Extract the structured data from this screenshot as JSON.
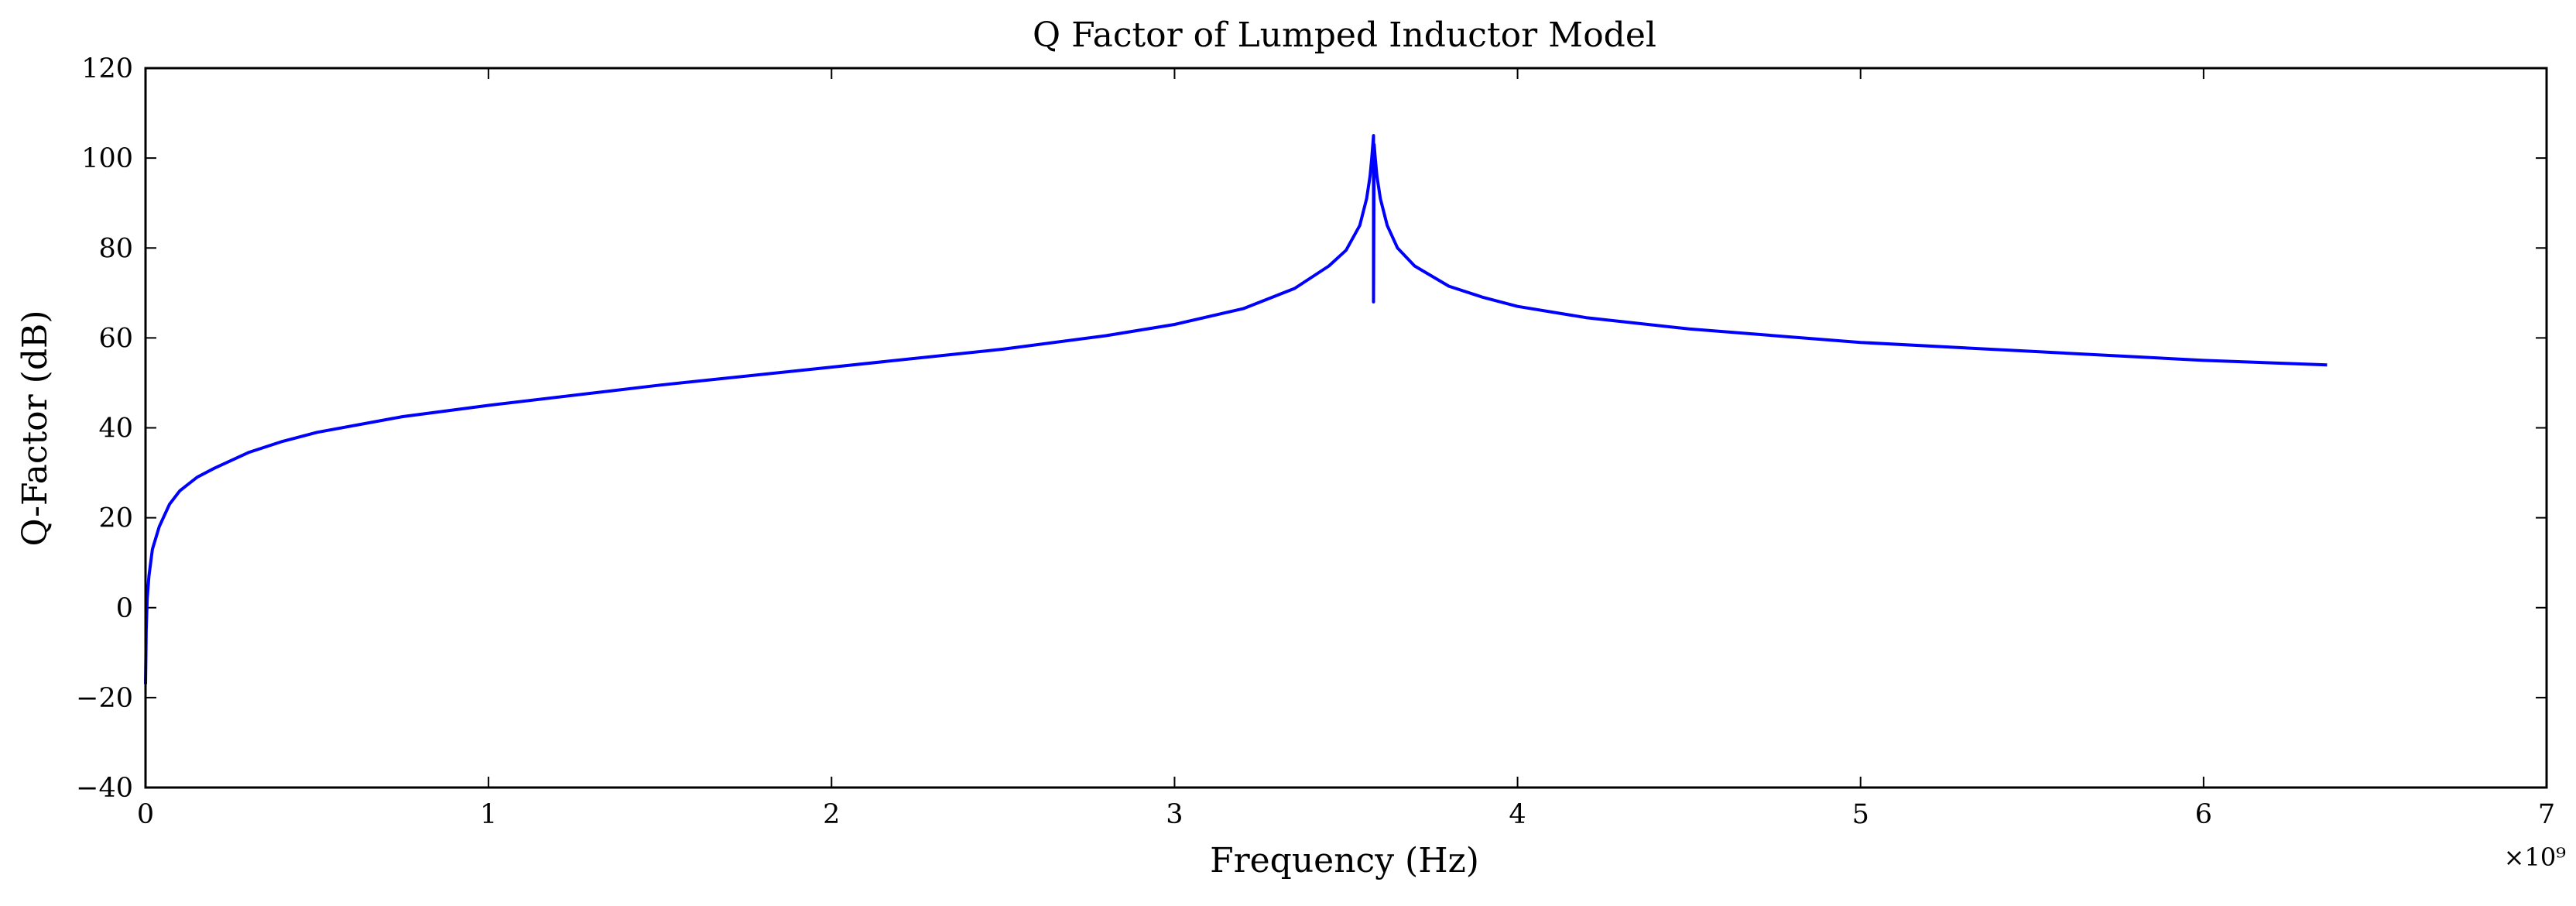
{
  "chart_data": {
    "type": "line",
    "title": "Q Factor of Lumped Inductor Model",
    "xlabel": "Frequency (Hz)",
    "ylabel": "Q-Factor (dB)",
    "x_offset_label": "×10⁹",
    "xlim": [
      0,
      7
    ],
    "ylim": [
      -40,
      120
    ],
    "x_ticks": [
      0,
      1,
      2,
      3,
      4,
      5,
      6,
      7
    ],
    "y_ticks": [
      -40,
      -20,
      0,
      20,
      40,
      60,
      80,
      100,
      120
    ],
    "x_tick_labels": [
      "0",
      "1",
      "2",
      "3",
      "4",
      "5",
      "6",
      "7"
    ],
    "y_tick_labels": [
      "−40",
      "−20",
      "0",
      "20",
      "40",
      "60",
      "80",
      "100",
      "120"
    ],
    "grid": false,
    "series": [
      {
        "color": "#0000ff",
        "x": [
          0.0,
          0.002,
          0.005,
          0.01,
          0.02,
          0.04,
          0.07,
          0.1,
          0.15,
          0.2,
          0.3,
          0.4,
          0.5,
          0.75,
          1.0,
          1.5,
          2.0,
          2.5,
          2.8,
          3.0,
          3.2,
          3.35,
          3.45,
          3.5,
          3.54,
          3.56,
          3.57,
          3.575,
          3.578,
          3.58,
          3.58,
          3.582,
          3.585,
          3.59,
          3.6,
          3.62,
          3.65,
          3.7,
          3.8,
          3.9,
          4.0,
          4.2,
          4.5,
          5.0,
          5.5,
          6.0,
          6.36
        ],
        "y": [
          -17,
          -5,
          2,
          7,
          13,
          18,
          23,
          26,
          29,
          31,
          34.5,
          37,
          39,
          42.5,
          45,
          49.5,
          53.5,
          57.5,
          60.5,
          63,
          66.5,
          71,
          76,
          79.5,
          85,
          91,
          96,
          100,
          103,
          105,
          68,
          103,
          100,
          96,
          91,
          85,
          80,
          76,
          71.5,
          69,
          67,
          64.5,
          62,
          59,
          57,
          55,
          54
        ]
      }
    ]
  }
}
